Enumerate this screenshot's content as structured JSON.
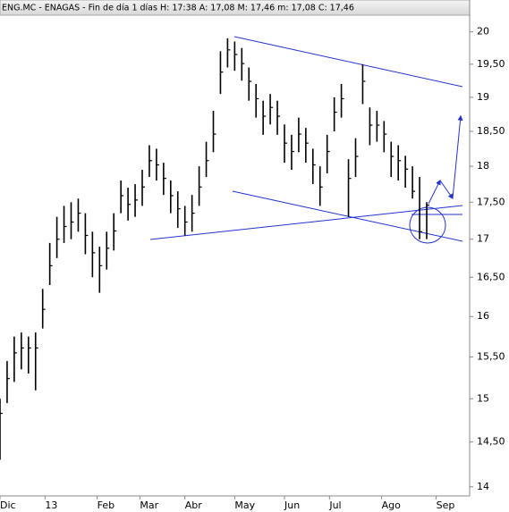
{
  "chart_data": {
    "type": "hlc",
    "title": "ENG.MC - ENAGAS - Fin de día 1 días H: 17:38 A: 17,08 M: 17,46 m: 17,08 C: 17,46",
    "color": "#000000",
    "log_scale": true,
    "x": [
      0,
      3,
      6,
      9,
      12,
      15,
      18,
      21,
      24,
      27,
      30,
      33,
      36,
      39,
      42,
      45,
      48,
      51,
      54,
      57,
      60,
      63,
      66,
      69,
      72,
      75,
      78,
      81,
      84,
      87,
      90,
      93,
      96,
      99,
      102,
      105,
      108,
      111,
      114,
      117,
      120,
      123,
      126,
      129,
      132,
      135,
      138,
      141,
      144,
      147,
      150,
      153,
      156,
      159,
      162,
      165,
      168,
      171,
      174,
      177,
      180
    ],
    "high": [
      15.0,
      15.45,
      15.75,
      15.8,
      15.75,
      15.8,
      16.35,
      16.95,
      17.3,
      17.45,
      17.5,
      17.55,
      17.35,
      17.1,
      16.9,
      17.1,
      17.35,
      17.8,
      17.7,
      17.75,
      17.95,
      18.3,
      18.25,
      18.05,
      17.8,
      17.65,
      17.45,
      17.6,
      18.0,
      18.35,
      18.8,
      19.7,
      19.9,
      19.85,
      19.75,
      19.45,
      19.2,
      18.95,
      19.05,
      18.95,
      18.6,
      18.45,
      18.7,
      18.55,
      18.25,
      18.0,
      18.45,
      19.0,
      19.2,
      18.1,
      18.4,
      19.5,
      18.85,
      18.8,
      18.65,
      18.35,
      18.3,
      18.15,
      18.0,
      17.85,
      17.5
    ],
    "low": [
      14.3,
      14.95,
      15.2,
      15.35,
      15.3,
      15.1,
      15.85,
      16.4,
      16.75,
      16.95,
      17.0,
      17.1,
      16.8,
      16.5,
      16.3,
      16.6,
      16.85,
      17.35,
      17.25,
      17.3,
      17.45,
      17.85,
      17.8,
      17.6,
      17.35,
      17.15,
      17.05,
      17.1,
      17.45,
      17.85,
      18.2,
      19.05,
      19.45,
      19.4,
      19.25,
      18.95,
      18.7,
      18.45,
      18.6,
      18.45,
      18.05,
      17.95,
      18.2,
      18.05,
      17.75,
      17.45,
      17.9,
      18.5,
      18.7,
      17.3,
      17.85,
      18.9,
      18.3,
      18.35,
      18.2,
      17.85,
      17.8,
      17.7,
      17.55,
      17.0,
      17.0
    ],
    "close": [
      14.83,
      15.24,
      15.55,
      15.61,
      15.61,
      15.61,
      16.09,
      16.65,
      17.0,
      17.17,
      17.23,
      17.35,
      17.05,
      16.82,
      16.65,
      16.88,
      17.11,
      17.59,
      17.47,
      17.53,
      17.71,
      18.08,
      18.02,
      17.83,
      17.59,
      17.41,
      17.23,
      17.35,
      17.71,
      18.08,
      18.46,
      19.38,
      19.72,
      19.65,
      19.51,
      19.24,
      18.98,
      18.72,
      18.85,
      18.72,
      18.33,
      18.21,
      18.46,
      18.33,
      18.02,
      17.71,
      18.21,
      18.78,
      18.98,
      17.83,
      18.14,
      19.24,
      18.59,
      18.59,
      18.46,
      18.14,
      18.08,
      17.96,
      17.65,
      17.1,
      17.46
    ],
    "xlim": [
      0,
      200
    ],
    "xticks": [
      {
        "value": 0,
        "label": "Dic"
      },
      {
        "value": 19,
        "label": "13"
      },
      {
        "value": 41,
        "label": "Feb"
      },
      {
        "value": 59,
        "label": "Mar"
      },
      {
        "value": 78,
        "label": "Abr"
      },
      {
        "value": 99,
        "label": "May"
      },
      {
        "value": 120,
        "label": "Jun"
      },
      {
        "value": 139,
        "label": "Jul"
      },
      {
        "value": 161,
        "label": "Ago"
      },
      {
        "value": 184,
        "label": "Sep"
      }
    ],
    "ylim": [
      13.9,
      20.25
    ],
    "yticks": [
      20,
      {
        "value": 19.5,
        "label": "19,50"
      },
      19,
      {
        "value": 18.5,
        "label": "18,50"
      },
      18,
      {
        "value": 17.5,
        "label": "17,50"
      },
      17,
      {
        "value": 16.5,
        "label": "16,50"
      },
      16,
      {
        "value": 15.5,
        "label": "15,50"
      },
      15,
      {
        "value": 14.5,
        "label": "14,50"
      },
      14
    ]
  }
}
